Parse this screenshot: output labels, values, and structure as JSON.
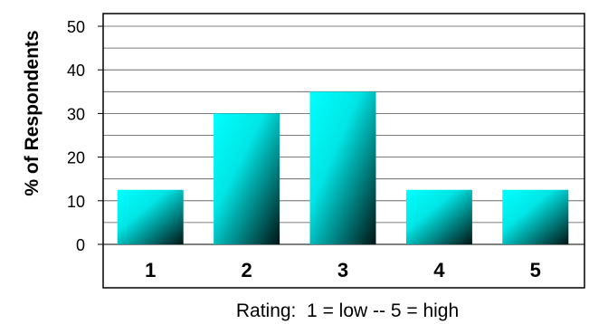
{
  "chart_data": {
    "type": "bar",
    "categories": [
      "1",
      "2",
      "3",
      "4",
      "5"
    ],
    "values": [
      12.5,
      30,
      35,
      12.5,
      12.5
    ],
    "title": "",
    "xlabel": "Rating:  1 = low -- 5 = high",
    "ylabel": "% of Respondents",
    "ylim": [
      0,
      50
    ],
    "yticks": [
      "0",
      "10",
      "20",
      "30",
      "40",
      "50"
    ],
    "grid": true,
    "legend": "none",
    "bar_gradient": [
      "#00ffff",
      "#000000"
    ]
  }
}
